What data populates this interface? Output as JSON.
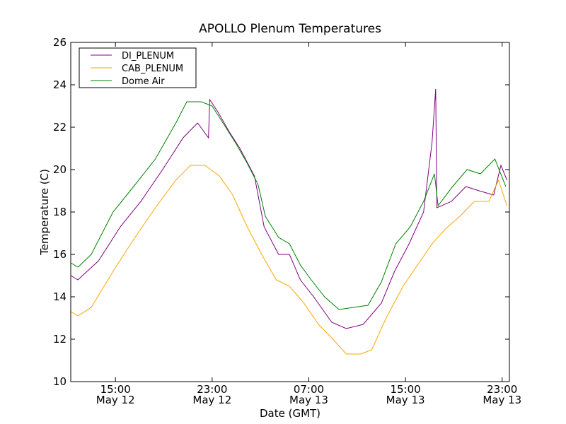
{
  "chart_data": {
    "type": "line",
    "title": "APOLLO Plenum Temperatures",
    "xlabel": "Date (GMT)",
    "ylabel": "Temperature (C)",
    "x_unit": "hours since May 12 00:00 GMT",
    "xlim": [
      11.3,
      23.6
    ],
    "xlim_hours": [
      11.3,
      47.6
    ],
    "ylim": [
      10,
      26
    ],
    "yticks": [
      10,
      12,
      14,
      16,
      18,
      20,
      22,
      24,
      26
    ],
    "xticks": [
      {
        "hours": 15,
        "label_time": "15:00",
        "label_date": "May 12"
      },
      {
        "hours": 23,
        "label_time": "23:00",
        "label_date": "May 12"
      },
      {
        "hours": 31,
        "label_time": "07:00",
        "label_date": "May 13"
      },
      {
        "hours": 39,
        "label_time": "15:00",
        "label_date": "May 13"
      },
      {
        "hours": 47,
        "label_time": "23:00",
        "label_date": "May 13"
      }
    ],
    "grid": false,
    "legend_position": "top-left",
    "series": [
      {
        "name": "DI_PLENUM",
        "color": "#800080",
        "x": [
          11.3,
          11.9,
          13.6,
          15.4,
          17.1,
          18.9,
          20.6,
          21.8,
          22.7,
          22.8,
          23.5,
          24.4,
          25.3,
          26.5,
          27.3,
          28.5,
          29.4,
          30.3,
          31.4,
          32.9,
          34.1,
          35.5,
          37.0,
          38.1,
          39.3,
          40.5,
          41.2,
          41.5,
          41.6,
          42.8,
          44.0,
          45.1,
          46.3,
          46.9,
          47.4
        ],
        "y": [
          15.0,
          14.8,
          15.7,
          17.3,
          18.5,
          20.0,
          21.5,
          22.2,
          21.5,
          23.3,
          22.7,
          21.8,
          21.0,
          19.7,
          17.3,
          16.0,
          16.0,
          14.8,
          14.0,
          12.8,
          12.5,
          12.7,
          13.7,
          15.2,
          16.5,
          18.0,
          21.3,
          23.8,
          18.2,
          18.5,
          19.2,
          19.0,
          18.8,
          20.2,
          19.5
        ]
      },
      {
        "name": "CAB_PLENUM",
        "color": "#FFA500",
        "x": [
          11.3,
          11.9,
          13.0,
          14.8,
          16.5,
          18.3,
          20.0,
          21.2,
          22.4,
          23.6,
          24.7,
          25.9,
          27.1,
          28.3,
          29.4,
          30.6,
          31.8,
          33.0,
          34.1,
          35.3,
          36.2,
          37.4,
          38.8,
          40.0,
          41.2,
          42.3,
          43.5,
          44.7,
          45.9,
          46.7,
          47.4
        ],
        "y": [
          13.3,
          13.1,
          13.5,
          15.2,
          16.7,
          18.2,
          19.5,
          20.2,
          20.2,
          19.7,
          18.8,
          17.3,
          16.0,
          14.8,
          14.5,
          13.7,
          12.7,
          12.0,
          11.3,
          11.3,
          11.5,
          13.0,
          14.5,
          15.5,
          16.5,
          17.2,
          17.8,
          18.5,
          18.5,
          19.5,
          18.3
        ]
      },
      {
        "name": "Dome Air",
        "color": "#008000",
        "x": [
          11.3,
          11.9,
          13.0,
          14.8,
          16.5,
          18.3,
          20.0,
          20.9,
          22.1,
          23.0,
          23.9,
          25.0,
          25.9,
          26.8,
          27.4,
          28.5,
          29.4,
          30.3,
          31.2,
          32.3,
          33.5,
          34.7,
          35.9,
          37.0,
          38.2,
          39.4,
          40.5,
          41.4,
          41.7,
          42.9,
          44.1,
          45.2,
          46.4,
          47.3
        ],
        "y": [
          15.6,
          15.4,
          16.0,
          18.0,
          19.2,
          20.5,
          22.2,
          23.2,
          23.2,
          23.0,
          22.2,
          21.2,
          20.3,
          19.3,
          17.8,
          16.8,
          16.5,
          15.5,
          14.8,
          14.0,
          13.4,
          13.5,
          13.6,
          14.7,
          16.5,
          17.3,
          18.5,
          19.8,
          18.3,
          19.2,
          20.0,
          19.8,
          20.5,
          19.2
        ]
      }
    ]
  }
}
